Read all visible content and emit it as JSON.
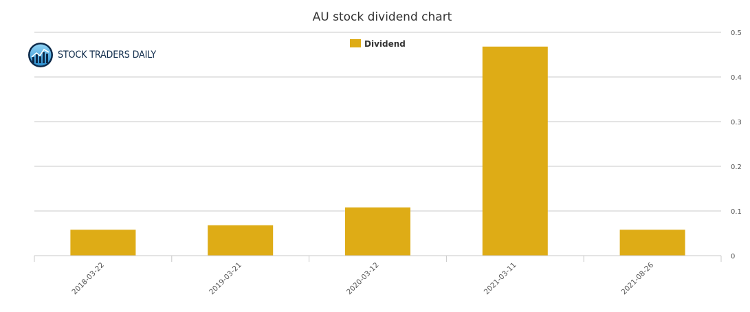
{
  "chart_data": {
    "type": "bar",
    "title": "AU stock dividend chart",
    "categories": [
      "2018-03-22",
      "2019-03-21",
      "2020-03-12",
      "2021-03-11",
      "2021-08-26"
    ],
    "series": [
      {
        "name": "Dividend",
        "values": [
          0.058,
          0.068,
          0.108,
          0.468,
          0.058
        ]
      }
    ],
    "ylim": [
      0,
      0.5
    ],
    "yticks": [
      0,
      0.1,
      0.2,
      0.3,
      0.4,
      0.5
    ],
    "ytick_labels": [
      "0",
      "0.1",
      "0.2",
      "0.3",
      "0.4",
      "0.5"
    ],
    "y_axis_side": "right",
    "grid": true,
    "legend_position": "top-center",
    "bar_color": "#deac16"
  },
  "logo": {
    "text": "STOCK TRADERS DAILY"
  }
}
